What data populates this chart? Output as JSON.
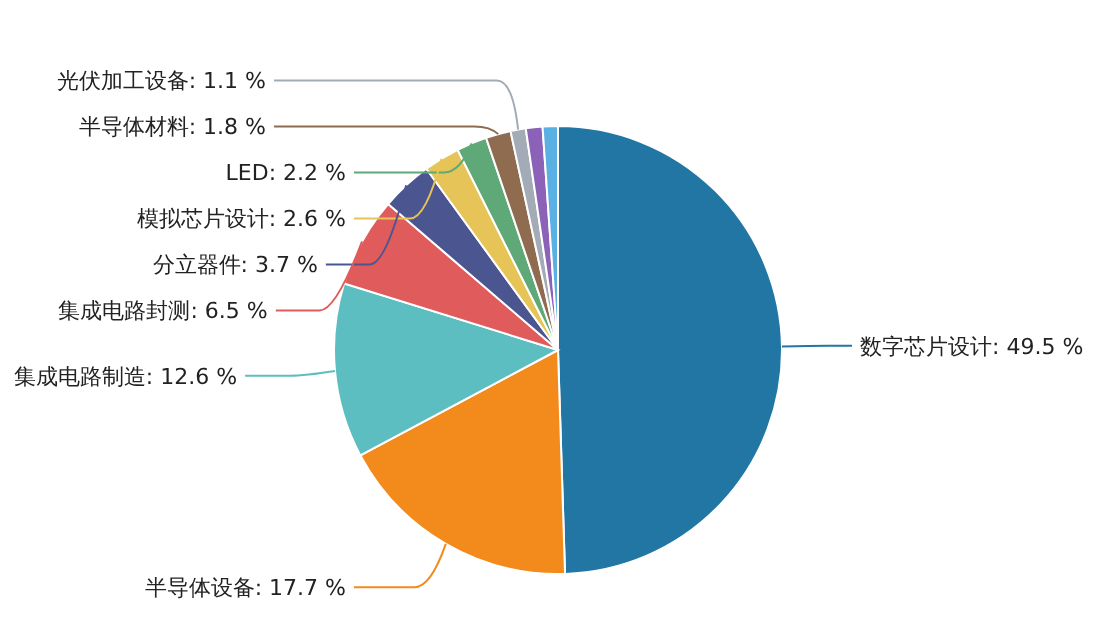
{
  "chart_data": {
    "type": "pie",
    "categories": [
      "数字芯片设计",
      "半导体设备",
      "集成电路制造",
      "集成电路封测",
      "分立器件",
      "模拟芯片设计",
      "LED",
      "半导体材料",
      "光伏加工设备",
      null,
      null
    ],
    "values": [
      49.5,
      17.7,
      12.6,
      6.5,
      3.7,
      2.6,
      2.2,
      1.8,
      1.1,
      1.2,
      1.1
    ],
    "colors": [
      "#2176a3",
      "#f28b1c",
      "#5cbec0",
      "#e05c5c",
      "#4b5690",
      "#e6c457",
      "#5fa878",
      "#8f6b50",
      "#a3acb6",
      "#8b62b8",
      "#5ab0e2"
    ],
    "value_labels": [
      "49.5 %",
      "17.7 %",
      "12.6 %",
      "6.5 %",
      "3.7 %",
      "2.6 %",
      "2.2 %",
      "1.8 %",
      "1.1 %",
      null,
      null
    ]
  }
}
